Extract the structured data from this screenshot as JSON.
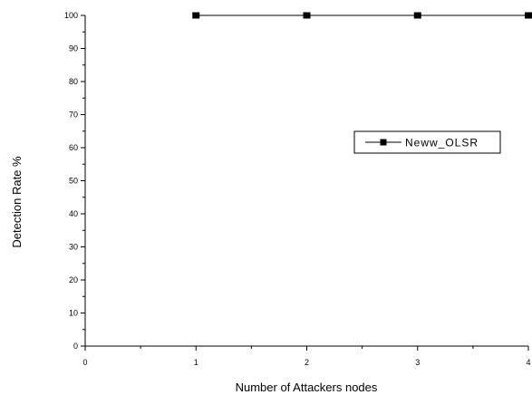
{
  "chart_data": {
    "type": "line",
    "xlabel": "Number of Attackers nodes",
    "ylabel": "Detection Rate %",
    "xlim": [
      0,
      4
    ],
    "ylim": [
      0,
      100
    ],
    "x_ticks": [
      "0",
      "1",
      "2",
      "3",
      "4"
    ],
    "y_ticks": [
      "0",
      "10",
      "20",
      "30",
      "40",
      "50",
      "60",
      "70",
      "80",
      "90",
      "100"
    ],
    "grid": false,
    "legend_position": "right",
    "series": [
      {
        "name": "Neww_OLSR",
        "x": [
          1,
          2,
          3,
          4
        ],
        "y": [
          100,
          100,
          100,
          100
        ],
        "color": "#000000",
        "marker": "square"
      }
    ]
  }
}
